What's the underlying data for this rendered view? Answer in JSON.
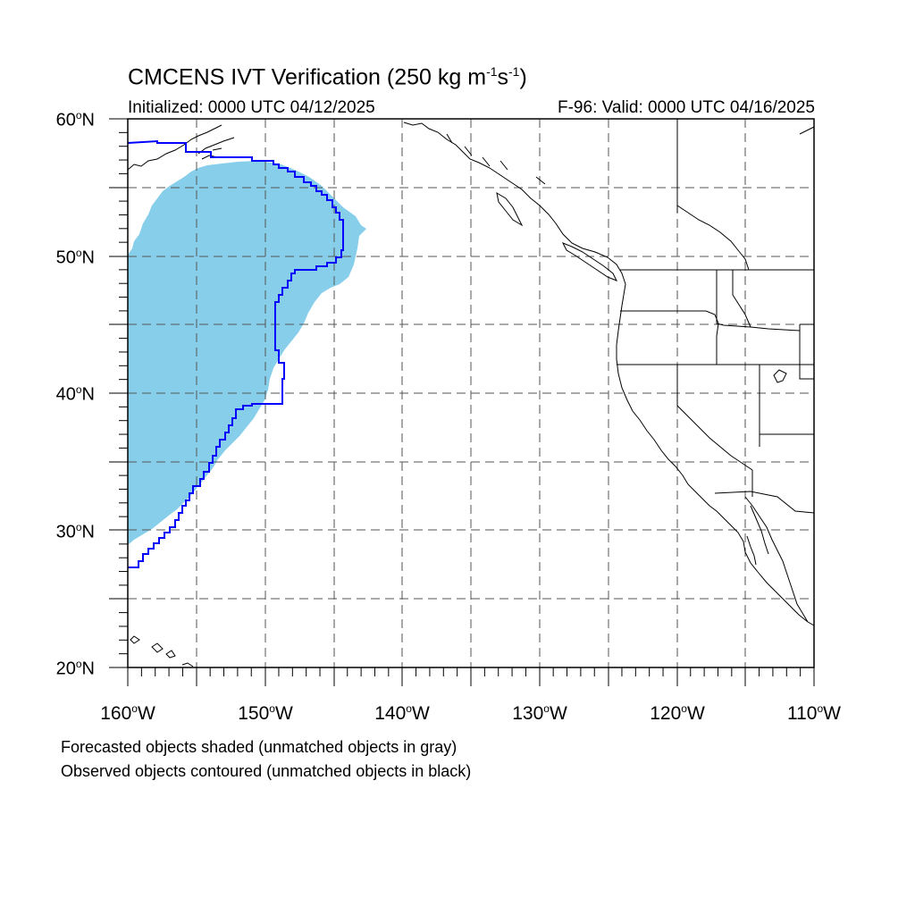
{
  "title": {
    "main": "CMCENS IVT Verification (250 kg m",
    "exp1": "-1",
    "mid": "s",
    "exp2": "-1",
    "close": ")"
  },
  "initialized": "Initialized: 0000 UTC 04/12/2025",
  "valid": "F-96: Valid: 0000 UTC 04/16/2025",
  "lat_labels": [
    {
      "num": "60",
      "deg": "o",
      "hem": "N"
    },
    {
      "num": "50",
      "deg": "o",
      "hem": "N"
    },
    {
      "num": "40",
      "deg": "o",
      "hem": "N"
    },
    {
      "num": "30",
      "deg": "o",
      "hem": "N"
    },
    {
      "num": "20",
      "deg": "o",
      "hem": "N"
    }
  ],
  "lon_labels": [
    {
      "num": "160",
      "deg": "o",
      "hem": "W"
    },
    {
      "num": "150",
      "deg": "o",
      "hem": "W"
    },
    {
      "num": "140",
      "deg": "o",
      "hem": "W"
    },
    {
      "num": "130",
      "deg": "o",
      "hem": "W"
    },
    {
      "num": "120",
      "deg": "o",
      "hem": "W"
    },
    {
      "num": "110",
      "deg": "o",
      "hem": "W"
    }
  ],
  "footer": {
    "line1": "Forecasted objects shaded (unmatched objects in gray)",
    "line2": "Observed objects contoured (unmatched objects in black)"
  },
  "map": {
    "lon_range": [
      -160,
      -110
    ],
    "lat_range": [
      20,
      60
    ],
    "grid_style": "dashed",
    "forecast_color": "#87ceeb",
    "observed_color": "#0000ff",
    "coast_color": "#000000"
  }
}
